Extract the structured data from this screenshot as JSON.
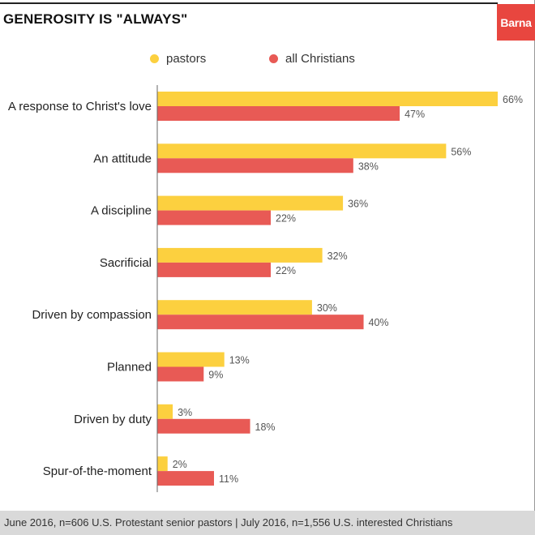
{
  "brand": {
    "logo_text": "Barna",
    "logo_color": "#e8463f"
  },
  "footer": {
    "note": "June 2016, n=606 U.S. Protestant senior pastors | July 2016, n=1,556 U.S. interested Christians"
  },
  "chart_data": {
    "type": "bar",
    "orientation": "horizontal",
    "title": "GENEROSITY IS \"ALWAYS\"",
    "categories": [
      "A response to Christ's love",
      "An attitude",
      "A discipline",
      "Sacrificial",
      "Driven by compassion",
      "Planned",
      "Driven by duty",
      "Spur-of-the-moment"
    ],
    "series": [
      {
        "name": "pastors",
        "color": "#fcd03f",
        "values": [
          66,
          56,
          36,
          32,
          30,
          13,
          3,
          2
        ]
      },
      {
        "name": "all Christians",
        "color": "#e85a55",
        "values": [
          47,
          38,
          22,
          22,
          40,
          9,
          18,
          11
        ]
      }
    ],
    "value_suffix": "%",
    "xlim": [
      0,
      66
    ],
    "grid": false,
    "legend_position": "top"
  }
}
